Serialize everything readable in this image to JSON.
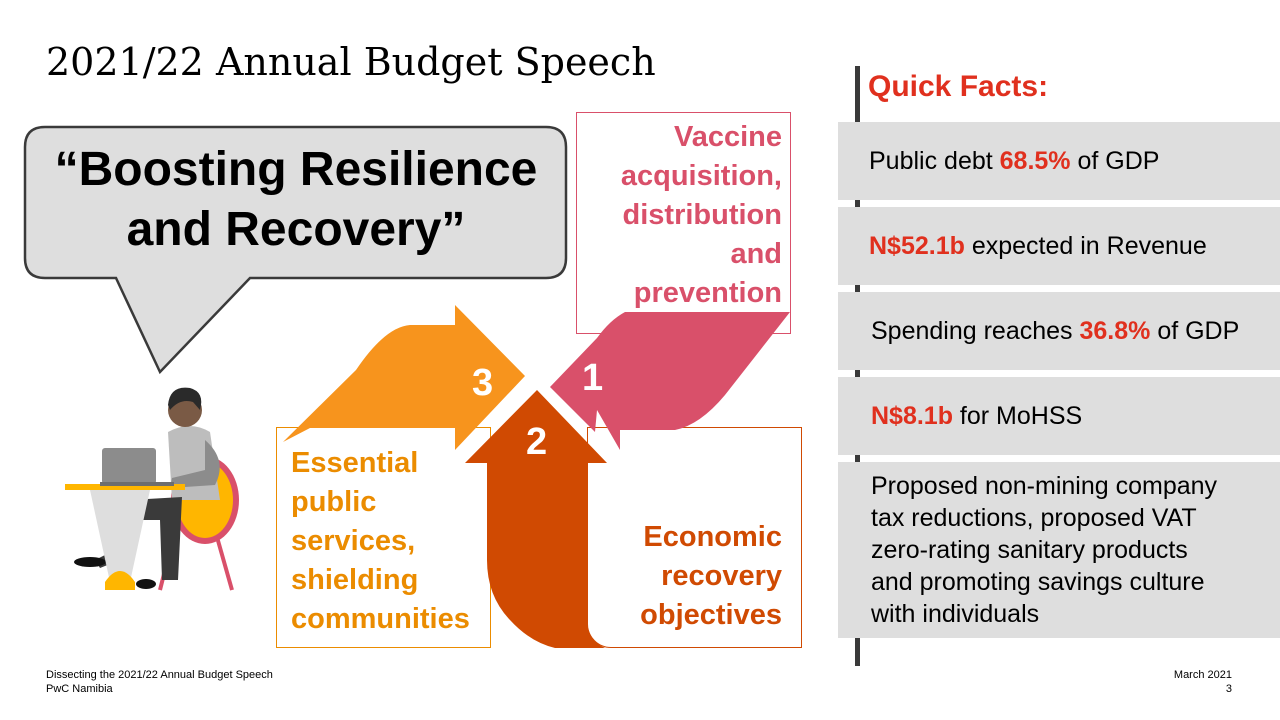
{
  "title": "2021/22 Annual Budget Speech",
  "bubble": {
    "line1": "“Boosting Resilience",
    "line2": "and Recovery”"
  },
  "diagram": {
    "colors": {
      "vaccine": "#D9506A",
      "economic": "#D04A02",
      "essential": "#EB8C00"
    },
    "items": [
      {
        "number": "1",
        "lines": [
          "Vaccine",
          "acquisition,",
          "distribution",
          "and",
          "prevention"
        ]
      },
      {
        "number": "2",
        "lines": [
          "Economic",
          "recovery",
          "objectives"
        ]
      },
      {
        "number": "3",
        "lines": [
          "Essential",
          "public",
          "services,",
          "shielding",
          "communities"
        ]
      }
    ]
  },
  "quick_facts": {
    "title": "Quick Facts:",
    "facts": [
      {
        "before": "Public debt ",
        "highlight": "68.5%",
        "after": " of GDP"
      },
      {
        "before": "",
        "highlight": "N$52.1b",
        "after": " expected in Revenue"
      },
      {
        "before": "Spending reaches ",
        "highlight": "36.8%",
        "after": " of GDP"
      },
      {
        "before": "",
        "highlight": "N$8.1b",
        "after": " for MoHSS"
      },
      {
        "lines": [
          "Proposed non-mining company",
          "tax reductions, proposed VAT",
          "zero-rating sanitary products",
          "and promoting savings culture",
          "with individuals"
        ]
      }
    ]
  },
  "footer": {
    "left_line1": "Dissecting the 2021/22 Annual Budget Speech",
    "left_line2": "PwC Namibia",
    "date": "March 2021",
    "page": "3"
  }
}
